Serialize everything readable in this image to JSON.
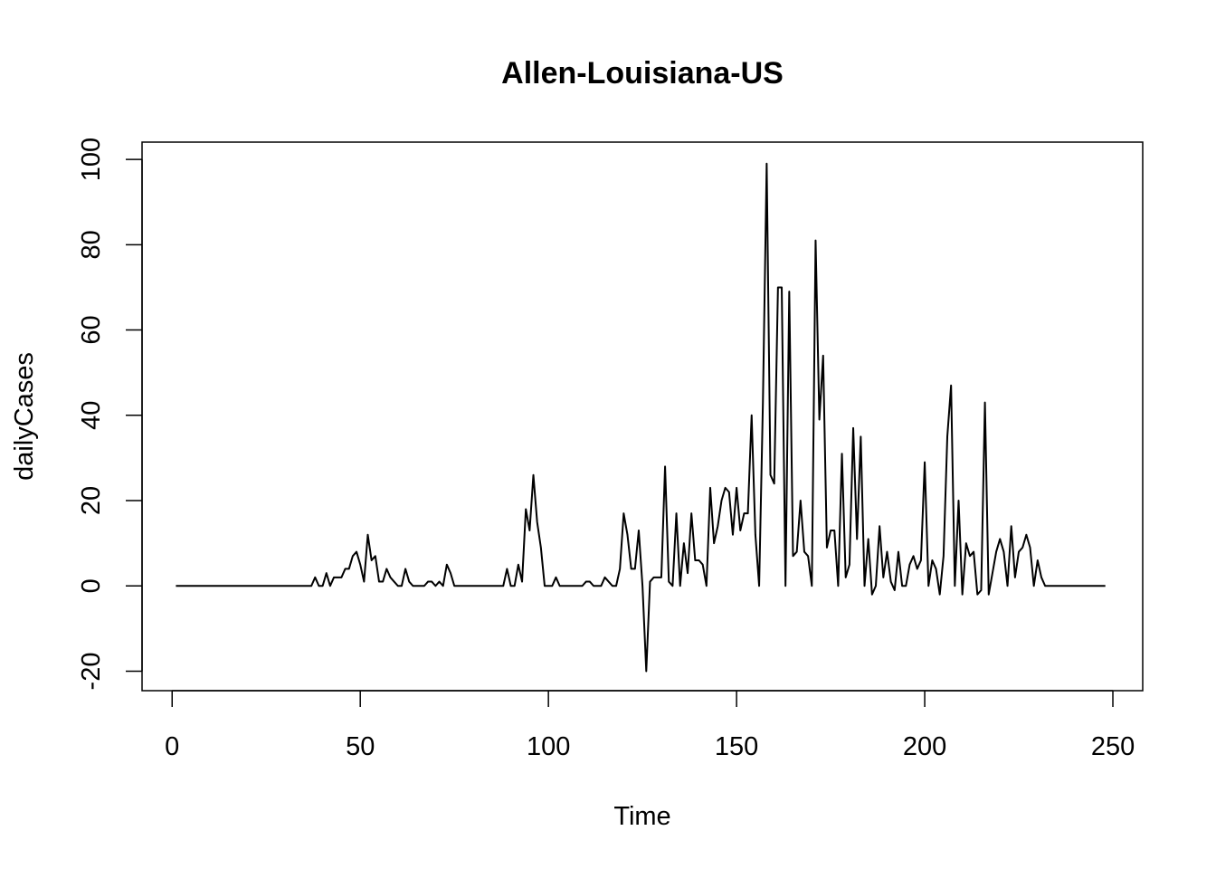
{
  "chart_data": {
    "type": "line",
    "title": "Allen-Louisiana-US",
    "xlabel": "Time",
    "ylabel": "dailyCases",
    "xlim": [
      1,
      248
    ],
    "ylim": [
      -20,
      99
    ],
    "x_ticks": [
      0,
      50,
      100,
      150,
      200,
      250
    ],
    "y_ticks": [
      -20,
      0,
      20,
      40,
      60,
      80,
      100
    ],
    "grid": false,
    "legend": "none",
    "series": [
      {
        "color": "#000000",
        "x_start": 1,
        "values": [
          0,
          0,
          0,
          0,
          0,
          0,
          0,
          0,
          0,
          0,
          0,
          0,
          0,
          0,
          0,
          0,
          0,
          0,
          0,
          0,
          0,
          0,
          0,
          0,
          0,
          0,
          0,
          0,
          0,
          0,
          0,
          0,
          0,
          0,
          0,
          0,
          0,
          2,
          0,
          0,
          3,
          0,
          2,
          2,
          2,
          4,
          4,
          7,
          8,
          5,
          1,
          12,
          6,
          7,
          1,
          1,
          4,
          2,
          1,
          0,
          0,
          4,
          1,
          0,
          0,
          0,
          0,
          1,
          1,
          0,
          1,
          0,
          5,
          3,
          0,
          0,
          0,
          0,
          0,
          0,
          0,
          0,
          0,
          0,
          0,
          0,
          0,
          0,
          4,
          0,
          0,
          5,
          1,
          18,
          13,
          26,
          15,
          9,
          0,
          0,
          0,
          2,
          0,
          0,
          0,
          0,
          0,
          0,
          0,
          1,
          1,
          0,
          0,
          0,
          2,
          1,
          0,
          0,
          4,
          17,
          12,
          4,
          4,
          13,
          0,
          -20,
          1,
          2,
          2,
          2,
          28,
          1,
          0,
          17,
          0,
          10,
          3,
          17,
          6,
          6,
          5,
          0,
          23,
          10,
          14,
          20,
          23,
          22,
          12,
          23,
          13,
          17,
          17,
          40,
          12,
          0,
          43,
          99,
          26,
          24,
          70,
          70,
          0,
          69,
          7,
          8,
          20,
          8,
          7,
          0,
          81,
          39,
          54,
          9,
          13,
          13,
          0,
          31,
          2,
          5,
          37,
          11,
          35,
          0,
          11,
          -2,
          0,
          14,
          2,
          8,
          1,
          -1,
          8,
          0,
          0,
          5,
          7,
          4,
          6,
          29,
          0,
          6,
          4,
          -2,
          7,
          35,
          47,
          0,
          20,
          -2,
          10,
          7,
          8,
          -2,
          -1,
          43,
          -2,
          3,
          8,
          11,
          8,
          0,
          14,
          2,
          8,
          9,
          12,
          9,
          0,
          6,
          2,
          0,
          0,
          0,
          0,
          0,
          0,
          0,
          0,
          0,
          0,
          0,
          0,
          0,
          0,
          0,
          0,
          0
        ]
      }
    ]
  }
}
